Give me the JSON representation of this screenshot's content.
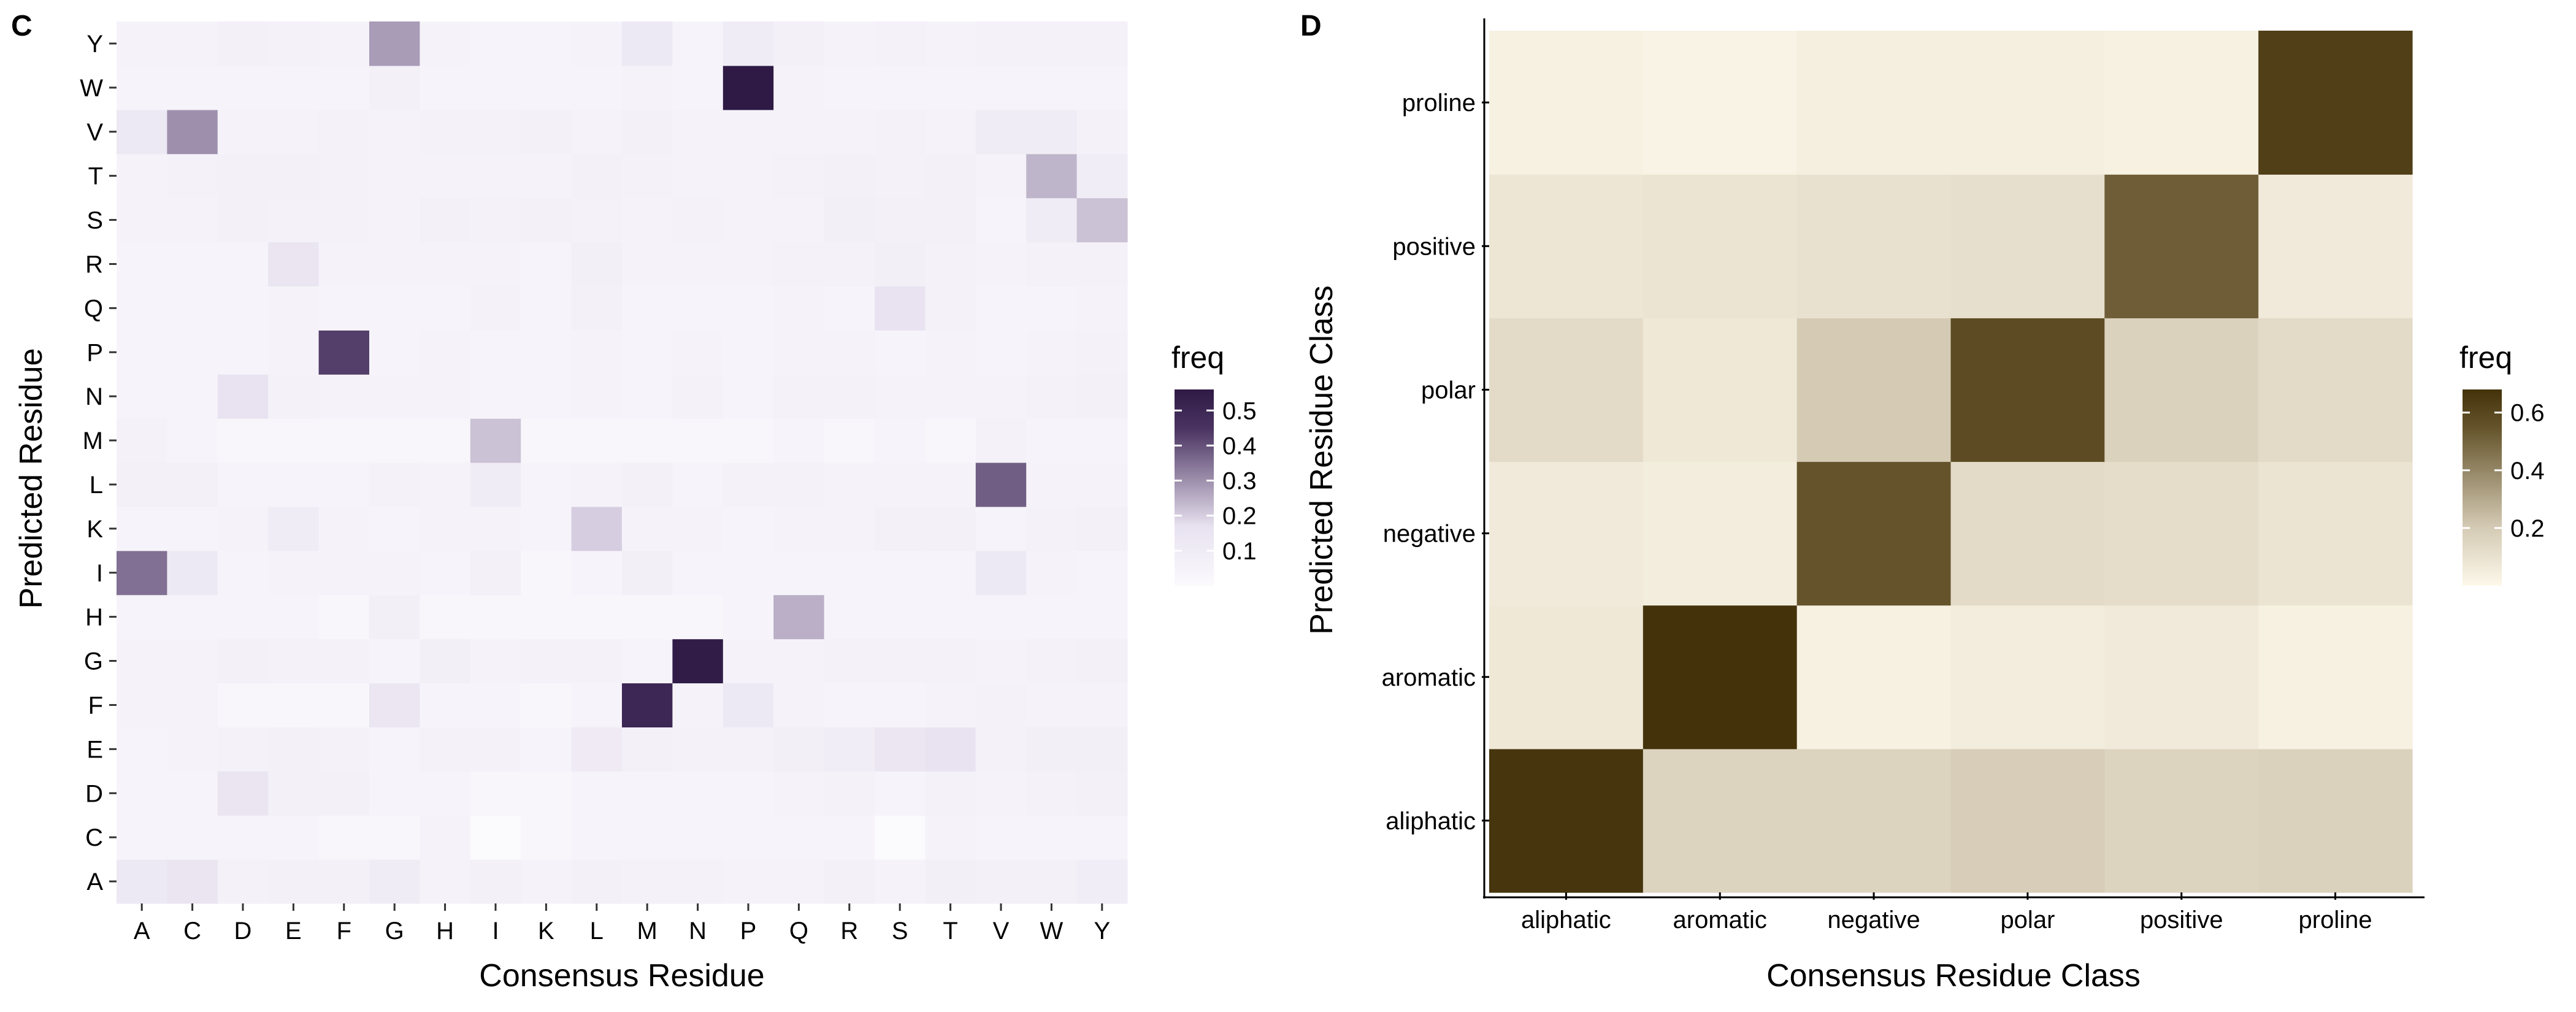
{
  "chart_data": [
    {
      "panel": "C",
      "type": "heatmap",
      "title": "",
      "xlabel": "Consensus Residue",
      "ylabel": "Predicted Residue",
      "x_categories": [
        "A",
        "C",
        "D",
        "E",
        "F",
        "G",
        "H",
        "I",
        "K",
        "L",
        "M",
        "N",
        "P",
        "Q",
        "R",
        "S",
        "T",
        "V",
        "W",
        "Y"
      ],
      "y_categories": [
        "A",
        "C",
        "D",
        "E",
        "F",
        "G",
        "H",
        "I",
        "K",
        "L",
        "M",
        "N",
        "P",
        "Q",
        "R",
        "S",
        "T",
        "V",
        "W",
        "Y"
      ],
      "values": [
        [
          0.12,
          0.15,
          0.06,
          0.07,
          0.07,
          0.1,
          0.05,
          0.07,
          0.05,
          0.07,
          0.06,
          0.06,
          0.05,
          0.05,
          0.07,
          0.05,
          0.08,
          0.07,
          0.07,
          0.09
        ],
        [
          0.04,
          0.04,
          0.04,
          0.04,
          0.03,
          0.03,
          0.05,
          0.0,
          0.03,
          0.04,
          0.04,
          0.04,
          0.04,
          0.04,
          0.04,
          0.0,
          0.05,
          0.04,
          0.04,
          0.04
        ],
        [
          0.04,
          0.04,
          0.15,
          0.07,
          0.07,
          0.04,
          0.04,
          0.03,
          0.03,
          0.04,
          0.04,
          0.04,
          0.04,
          0.05,
          0.06,
          0.04,
          0.06,
          0.05,
          0.06,
          0.07
        ],
        [
          0.04,
          0.05,
          0.06,
          0.07,
          0.06,
          0.04,
          0.06,
          0.06,
          0.04,
          0.11,
          0.07,
          0.06,
          0.06,
          0.08,
          0.09,
          0.14,
          0.16,
          0.06,
          0.08,
          0.08
        ],
        [
          0.05,
          0.05,
          0.03,
          0.03,
          0.03,
          0.14,
          0.04,
          0.04,
          0.03,
          0.04,
          0.5,
          0.05,
          0.12,
          0.05,
          0.04,
          0.04,
          0.05,
          0.06,
          0.05,
          0.05
        ],
        [
          0.05,
          0.05,
          0.07,
          0.06,
          0.06,
          0.04,
          0.08,
          0.05,
          0.06,
          0.06,
          0.04,
          0.55,
          0.05,
          0.05,
          0.06,
          0.06,
          0.06,
          0.05,
          0.06,
          0.07
        ],
        [
          0.04,
          0.04,
          0.04,
          0.04,
          0.03,
          0.08,
          0.03,
          0.03,
          0.03,
          0.03,
          0.03,
          0.03,
          0.04,
          0.25,
          0.04,
          0.04,
          0.04,
          0.04,
          0.04,
          0.04
        ],
        [
          0.35,
          0.12,
          0.04,
          0.05,
          0.05,
          0.05,
          0.04,
          0.07,
          0.03,
          0.04,
          0.08,
          0.04,
          0.04,
          0.04,
          0.04,
          0.04,
          0.04,
          0.12,
          0.05,
          0.04
        ],
        [
          0.04,
          0.04,
          0.05,
          0.1,
          0.05,
          0.04,
          0.05,
          0.05,
          0.04,
          0.2,
          0.05,
          0.05,
          0.04,
          0.05,
          0.05,
          0.07,
          0.07,
          0.04,
          0.06,
          0.07
        ],
        [
          0.07,
          0.07,
          0.04,
          0.04,
          0.04,
          0.06,
          0.05,
          0.1,
          0.04,
          0.05,
          0.07,
          0.04,
          0.06,
          0.06,
          0.05,
          0.05,
          0.05,
          0.38,
          0.05,
          0.05
        ],
        [
          0.06,
          0.04,
          0.03,
          0.03,
          0.03,
          0.03,
          0.03,
          0.22,
          0.03,
          0.03,
          0.03,
          0.03,
          0.03,
          0.04,
          0.03,
          0.04,
          0.03,
          0.06,
          0.04,
          0.04
        ],
        [
          0.04,
          0.04,
          0.16,
          0.06,
          0.05,
          0.05,
          0.05,
          0.04,
          0.04,
          0.05,
          0.04,
          0.06,
          0.04,
          0.06,
          0.06,
          0.05,
          0.05,
          0.05,
          0.06,
          0.07
        ],
        [
          0.04,
          0.04,
          0.04,
          0.05,
          0.43,
          0.04,
          0.05,
          0.04,
          0.04,
          0.05,
          0.04,
          0.05,
          0.04,
          0.05,
          0.05,
          0.04,
          0.05,
          0.04,
          0.05,
          0.06
        ],
        [
          0.04,
          0.04,
          0.04,
          0.05,
          0.04,
          0.04,
          0.04,
          0.06,
          0.04,
          0.07,
          0.04,
          0.04,
          0.04,
          0.05,
          0.04,
          0.16,
          0.06,
          0.04,
          0.04,
          0.05
        ],
        [
          0.04,
          0.04,
          0.04,
          0.15,
          0.05,
          0.05,
          0.05,
          0.05,
          0.04,
          0.08,
          0.05,
          0.05,
          0.05,
          0.06,
          0.06,
          0.08,
          0.06,
          0.05,
          0.06,
          0.06
        ],
        [
          0.05,
          0.05,
          0.07,
          0.06,
          0.06,
          0.05,
          0.07,
          0.06,
          0.07,
          0.06,
          0.05,
          0.06,
          0.05,
          0.05,
          0.08,
          0.07,
          0.07,
          0.04,
          0.1,
          0.22
        ],
        [
          0.05,
          0.06,
          0.07,
          0.07,
          0.06,
          0.05,
          0.05,
          0.05,
          0.05,
          0.07,
          0.06,
          0.05,
          0.05,
          0.06,
          0.07,
          0.06,
          0.07,
          0.05,
          0.24,
          0.09
        ],
        [
          0.12,
          0.3,
          0.05,
          0.05,
          0.06,
          0.05,
          0.06,
          0.06,
          0.07,
          0.05,
          0.07,
          0.05,
          0.05,
          0.05,
          0.05,
          0.06,
          0.05,
          0.1,
          0.1,
          0.06
        ],
        [
          0.04,
          0.04,
          0.04,
          0.04,
          0.04,
          0.07,
          0.04,
          0.04,
          0.04,
          0.04,
          0.05,
          0.04,
          0.56,
          0.05,
          0.04,
          0.04,
          0.04,
          0.04,
          0.04,
          0.04
        ],
        [
          0.05,
          0.05,
          0.07,
          0.06,
          0.05,
          0.28,
          0.05,
          0.04,
          0.04,
          0.05,
          0.12,
          0.04,
          0.1,
          0.07,
          0.05,
          0.06,
          0.05,
          0.06,
          0.06,
          0.06
        ]
      ],
      "legend": {
        "title": "freq",
        "ticks": [
          "0.1",
          "0.2",
          "0.3",
          "0.4",
          "0.5"
        ],
        "range": [
          0,
          0.56
        ],
        "colors": [
          "#fbfafd",
          "#e8e2f0",
          "#4a3361",
          "#2e1a45"
        ]
      }
    },
    {
      "panel": "D",
      "type": "heatmap",
      "title": "",
      "xlabel": "Consensus Residue Class",
      "ylabel": "Predicted Residue Class",
      "x_categories": [
        "aliphatic",
        "aromatic",
        "negative",
        "polar",
        "positive",
        "proline"
      ],
      "y_categories": [
        "aliphatic",
        "aromatic",
        "negative",
        "polar",
        "positive",
        "proline"
      ],
      "values": [
        [
          0.67,
          0.16,
          0.16,
          0.19,
          0.16,
          0.17
        ],
        [
          0.07,
          0.68,
          0.03,
          0.05,
          0.06,
          0.03
        ],
        [
          0.06,
          0.05,
          0.55,
          0.13,
          0.12,
          0.09
        ],
        [
          0.13,
          0.07,
          0.2,
          0.58,
          0.17,
          0.13
        ],
        [
          0.08,
          0.09,
          0.1,
          0.11,
          0.52,
          0.06
        ],
        [
          0.03,
          0.02,
          0.04,
          0.04,
          0.03,
          0.63
        ]
      ],
      "legend": {
        "title": "freq",
        "ticks": [
          "0.2",
          "0.4",
          "0.6"
        ],
        "range": [
          0,
          0.68
        ],
        "colors": [
          "#fdf8ea",
          "#d4cab4",
          "#66552c",
          "#43320a"
        ]
      }
    }
  ]
}
